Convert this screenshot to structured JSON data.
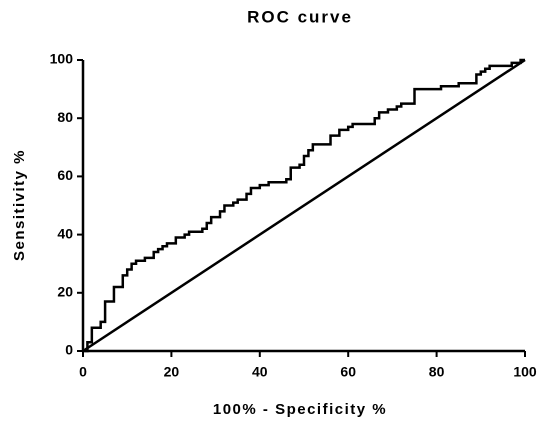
{
  "chart_data": {
    "type": "line",
    "title": "ROC curve",
    "x_label": "100% - Specificity %",
    "y_label": "Sensitivity %",
    "xlim": [
      0,
      100
    ],
    "ylim": [
      0,
      100
    ],
    "xticks": [
      0,
      20,
      40,
      60,
      80,
      100
    ],
    "yticks": [
      0,
      20,
      40,
      60,
      80,
      100
    ],
    "grid": false,
    "series": [
      {
        "color": "#000000",
        "x": [
          0,
          1,
          1,
          2,
          2,
          4,
          4,
          5,
          5,
          7,
          7,
          9,
          9,
          10,
          10,
          11,
          11,
          12,
          12,
          14,
          14,
          16,
          16,
          17,
          17,
          18,
          18,
          19,
          19,
          21,
          21,
          23,
          23,
          24,
          24,
          27,
          27,
          28,
          28,
          29,
          29,
          31,
          31,
          32,
          32,
          34,
          34,
          35,
          35,
          37,
          37,
          38,
          38,
          40,
          40,
          42,
          42,
          46,
          46,
          47,
          47,
          49,
          49,
          50,
          50,
          51,
          51,
          52,
          52,
          56,
          56,
          58,
          58,
          60,
          60,
          61,
          61,
          66,
          66,
          67,
          67,
          69,
          69,
          71,
          71,
          72,
          72,
          75,
          75,
          81,
          81,
          85,
          85,
          89,
          89,
          90,
          90,
          91,
          91,
          92,
          92,
          97,
          97,
          99,
          99,
          100
        ],
        "values": [
          0,
          0,
          3,
          3,
          8,
          8,
          10,
          10,
          17,
          17,
          22,
          22,
          26,
          26,
          28,
          28,
          30,
          30,
          31,
          31,
          32,
          32,
          34,
          34,
          35,
          35,
          36,
          36,
          37,
          37,
          39,
          39,
          40,
          40,
          41,
          41,
          42,
          42,
          44,
          44,
          46,
          46,
          48,
          48,
          50,
          50,
          51,
          51,
          52,
          52,
          54,
          54,
          56,
          56,
          57,
          57,
          58,
          58,
          59,
          59,
          63,
          63,
          64,
          64,
          67,
          67,
          69,
          69,
          71,
          71,
          74,
          74,
          76,
          76,
          77,
          77,
          78,
          78,
          80,
          80,
          82,
          82,
          83,
          83,
          84,
          84,
          85,
          85,
          90,
          90,
          91,
          91,
          92,
          92,
          95,
          95,
          96,
          96,
          97,
          97,
          98,
          98,
          99,
          99,
          100,
          100
        ]
      },
      {
        "color": "#000000",
        "x": [
          0,
          100
        ],
        "values": [
          0,
          100
        ]
      }
    ]
  }
}
